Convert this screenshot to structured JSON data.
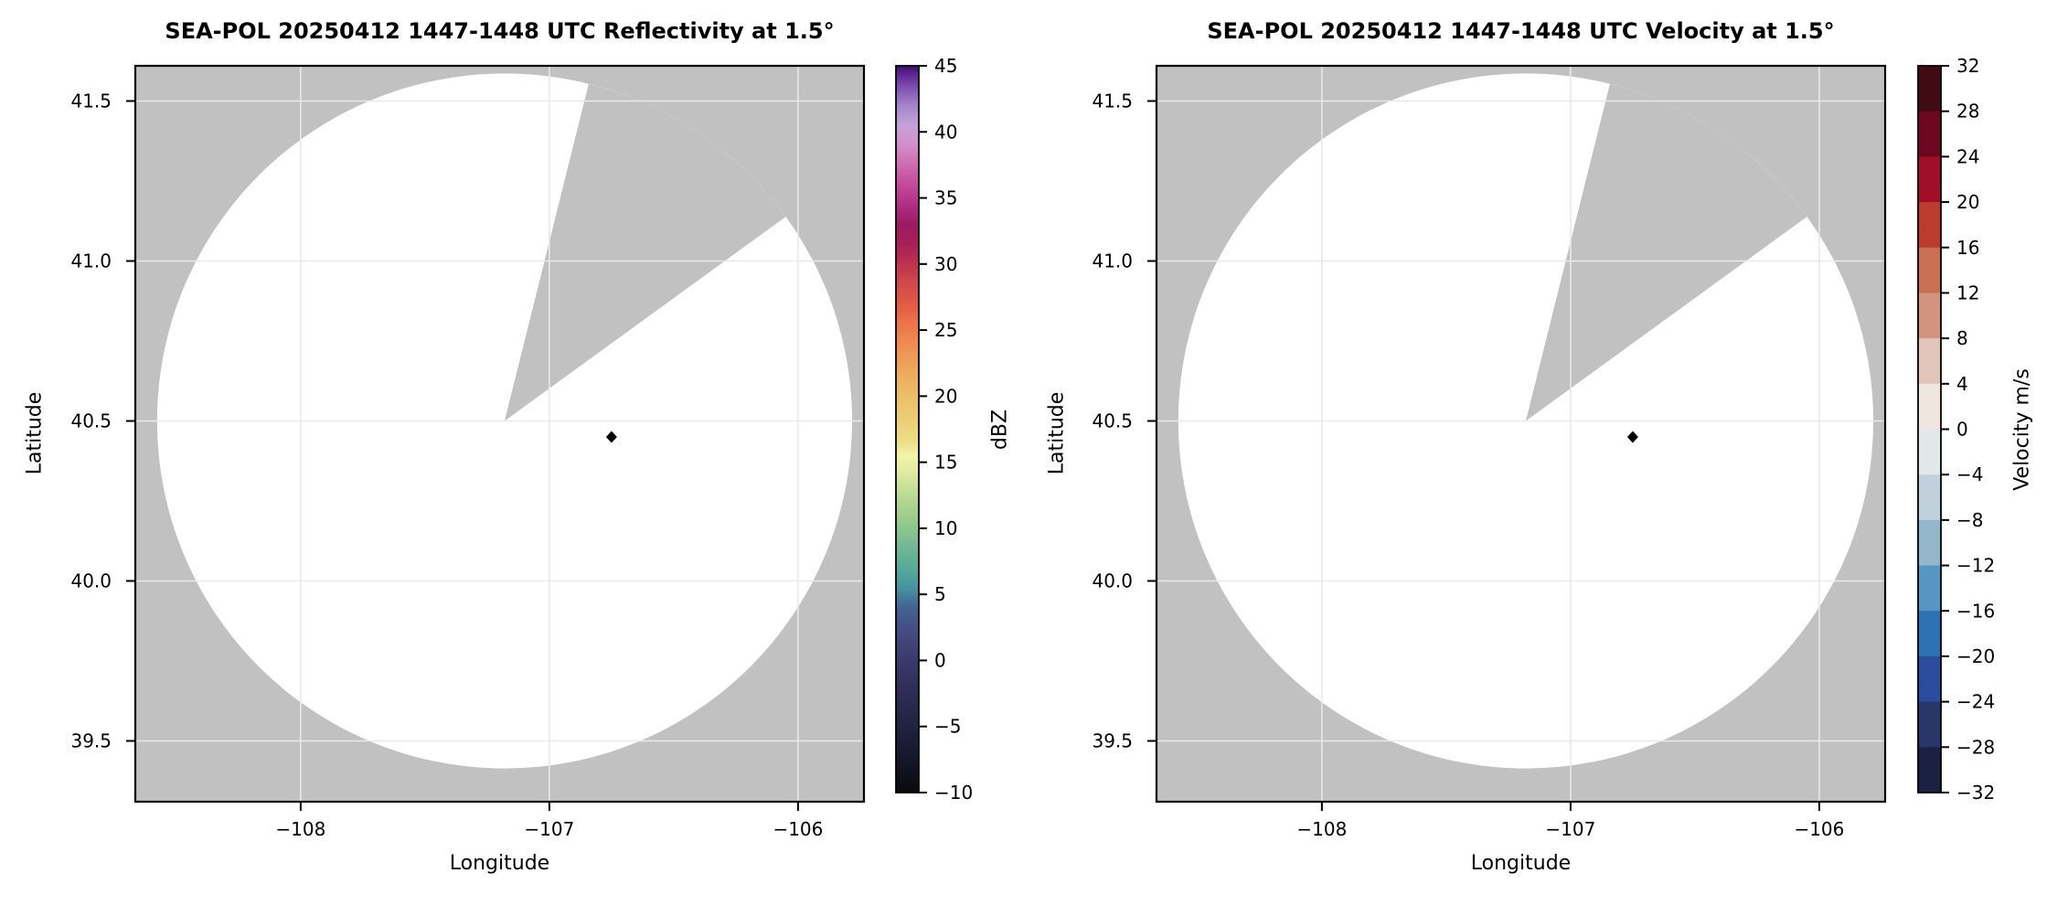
{
  "figure": {
    "background_color": "#ffffff",
    "nodata_color": "#c1c1c1",
    "scan_area_color": "#ffffff",
    "grid_color": "#e9e9e9",
    "axis_color": "#000000",
    "panel_count": 2
  },
  "chart_data": [
    {
      "type": "heatmap",
      "subtype": "radar_ppi_lat_lon",
      "title": "SEA-POL 20250412 1447-1448 UTC Reflectivity at 1.5°",
      "xlabel": "Longitude",
      "ylabel": "Latitude",
      "xlim": [
        -108.665,
        -105.735
      ],
      "ylim": [
        39.31,
        41.61
      ],
      "grid": true,
      "xticks": [
        {
          "value": -108,
          "label": "−108"
        },
        {
          "value": -107,
          "label": "−107"
        },
        {
          "value": -106,
          "label": "−106"
        }
      ],
      "yticks": [
        {
          "value": 39.5,
          "label": "39.5"
        },
        {
          "value": 40.0,
          "label": "40.0"
        },
        {
          "value": 40.5,
          "label": "40.5"
        },
        {
          "value": 41.0,
          "label": "41.0"
        },
        {
          "value": 41.5,
          "label": "41.5"
        }
      ],
      "scan": {
        "center_lon": -107.18,
        "center_lat": 40.5,
        "radius_lat_deg": 1.086,
        "missing_sector_azimuth_deg": [
          14,
          54
        ],
        "echoes": "none visible (scan area blank)"
      },
      "marker": {
        "lon": -106.75,
        "lat": 40.45,
        "shape": "diamond",
        "color": "#000000"
      },
      "colorbar": {
        "label": "dBZ",
        "vmin": -10,
        "vmax": 45,
        "style": "gradient",
        "ticks": [
          {
            "value": 45,
            "label": "45"
          },
          {
            "value": 40,
            "label": "40"
          },
          {
            "value": 35,
            "label": "35"
          },
          {
            "value": 30,
            "label": "30"
          },
          {
            "value": 25,
            "label": "25"
          },
          {
            "value": 20,
            "label": "20"
          },
          {
            "value": 15,
            "label": "15"
          },
          {
            "value": 10,
            "label": "10"
          },
          {
            "value": 5,
            "label": "5"
          },
          {
            "value": 0,
            "label": "0"
          },
          {
            "value": -5,
            "label": "−5"
          },
          {
            "value": -10,
            "label": "−10"
          }
        ],
        "stops": [
          {
            "value": -10,
            "color": "#0a0a0c"
          },
          {
            "value": -7.5,
            "color": "#15172a"
          },
          {
            "value": -5,
            "color": "#212340"
          },
          {
            "value": -2.5,
            "color": "#2e2c55"
          },
          {
            "value": 0,
            "color": "#3b396b"
          },
          {
            "value": 2,
            "color": "#454a80"
          },
          {
            "value": 4,
            "color": "#446295"
          },
          {
            "value": 5.5,
            "color": "#46939f"
          },
          {
            "value": 7,
            "color": "#58ab97"
          },
          {
            "value": 8.5,
            "color": "#71b795"
          },
          {
            "value": 10,
            "color": "#8cc68c"
          },
          {
            "value": 11.5,
            "color": "#a8d18e"
          },
          {
            "value": 13,
            "color": "#c6df97"
          },
          {
            "value": 14.5,
            "color": "#e6eca2"
          },
          {
            "value": 15.5,
            "color": "#f3f2ac"
          },
          {
            "value": 16.5,
            "color": "#ecdf87"
          },
          {
            "value": 18,
            "color": "#ecd079"
          },
          {
            "value": 20,
            "color": "#edbf68"
          },
          {
            "value": 22,
            "color": "#eda75c"
          },
          {
            "value": 24,
            "color": "#ee8b51"
          },
          {
            "value": 25.5,
            "color": "#ec7448"
          },
          {
            "value": 27,
            "color": "#e25a43"
          },
          {
            "value": 28.5,
            "color": "#d2494a"
          },
          {
            "value": 30,
            "color": "#be3250"
          },
          {
            "value": 31.5,
            "color": "#a81f58"
          },
          {
            "value": 33,
            "color": "#9c1a62"
          },
          {
            "value": 34.5,
            "color": "#b12f85"
          },
          {
            "value": 36,
            "color": "#c44a9b"
          },
          {
            "value": 37.5,
            "color": "#cd6cb0"
          },
          {
            "value": 39,
            "color": "#d28fc9"
          },
          {
            "value": 40.5,
            "color": "#c5a3d8"
          },
          {
            "value": 42,
            "color": "#a484cb"
          },
          {
            "value": 43.5,
            "color": "#7b4bae"
          },
          {
            "value": 44.5,
            "color": "#571f8a"
          },
          {
            "value": 45,
            "color": "#3c1066"
          }
        ]
      }
    },
    {
      "type": "heatmap",
      "subtype": "radar_ppi_lat_lon",
      "title": "SEA-POL 20250412 1447-1448 UTC Velocity at 1.5°",
      "xlabel": "Longitude",
      "ylabel": "Latitude",
      "xlim": [
        -108.665,
        -105.735
      ],
      "ylim": [
        39.31,
        41.61
      ],
      "grid": true,
      "xticks": [
        {
          "value": -108,
          "label": "−108"
        },
        {
          "value": -107,
          "label": "−107"
        },
        {
          "value": -106,
          "label": "−106"
        }
      ],
      "yticks": [
        {
          "value": 39.5,
          "label": "39.5"
        },
        {
          "value": 40.0,
          "label": "40.0"
        },
        {
          "value": 40.5,
          "label": "40.5"
        },
        {
          "value": 41.0,
          "label": "41.0"
        },
        {
          "value": 41.5,
          "label": "41.5"
        }
      ],
      "scan": {
        "center_lon": -107.18,
        "center_lat": 40.5,
        "radius_lat_deg": 1.086,
        "missing_sector_azimuth_deg": [
          14,
          54
        ],
        "echoes": "none visible (scan area blank)"
      },
      "marker": {
        "lon": -106.75,
        "lat": 40.45,
        "shape": "diamond",
        "color": "#000000"
      },
      "colorbar": {
        "label": "Velocity m/s",
        "vmin": -32,
        "vmax": 32,
        "style": "bands",
        "ticks": [
          {
            "value": 32,
            "label": "32"
          },
          {
            "value": 28,
            "label": "28"
          },
          {
            "value": 24,
            "label": "24"
          },
          {
            "value": 20,
            "label": "20"
          },
          {
            "value": 16,
            "label": "16"
          },
          {
            "value": 12,
            "label": "12"
          },
          {
            "value": 8,
            "label": "8"
          },
          {
            "value": 4,
            "label": "4"
          },
          {
            "value": 0,
            "label": "0"
          },
          {
            "value": -4,
            "label": "−4"
          },
          {
            "value": -8,
            "label": "−8"
          },
          {
            "value": -12,
            "label": "−12"
          },
          {
            "value": -16,
            "label": "−16"
          },
          {
            "value": -20,
            "label": "−20"
          },
          {
            "value": -24,
            "label": "−24"
          },
          {
            "value": -28,
            "label": "−28"
          },
          {
            "value": -32,
            "label": "−32"
          }
        ],
        "bands": [
          {
            "from": 28,
            "to": 32,
            "color": "#400b15"
          },
          {
            "from": 24,
            "to": 28,
            "color": "#6d0823"
          },
          {
            "from": 20,
            "to": 24,
            "color": "#a00f27"
          },
          {
            "from": 16,
            "to": 20,
            "color": "#bb3b2f"
          },
          {
            "from": 12,
            "to": 16,
            "color": "#c96f53"
          },
          {
            "from": 8,
            "to": 12,
            "color": "#d2947f"
          },
          {
            "from": 4,
            "to": 8,
            "color": "#e2c5ba"
          },
          {
            "from": 0,
            "to": 4,
            "color": "#eee4e0"
          },
          {
            "from": -4,
            "to": 0,
            "color": "#e2e7ea"
          },
          {
            "from": -8,
            "to": -4,
            "color": "#c1d1db"
          },
          {
            "from": -12,
            "to": -8,
            "color": "#93b6cc"
          },
          {
            "from": -16,
            "to": -12,
            "color": "#5795c2"
          },
          {
            "from": -20,
            "to": -16,
            "color": "#2d72b2"
          },
          {
            "from": -24,
            "to": -20,
            "color": "#2c4c9d"
          },
          {
            "from": -28,
            "to": -24,
            "color": "#273769"
          },
          {
            "from": -32,
            "to": -28,
            "color": "#1a2142"
          }
        ]
      }
    }
  ]
}
